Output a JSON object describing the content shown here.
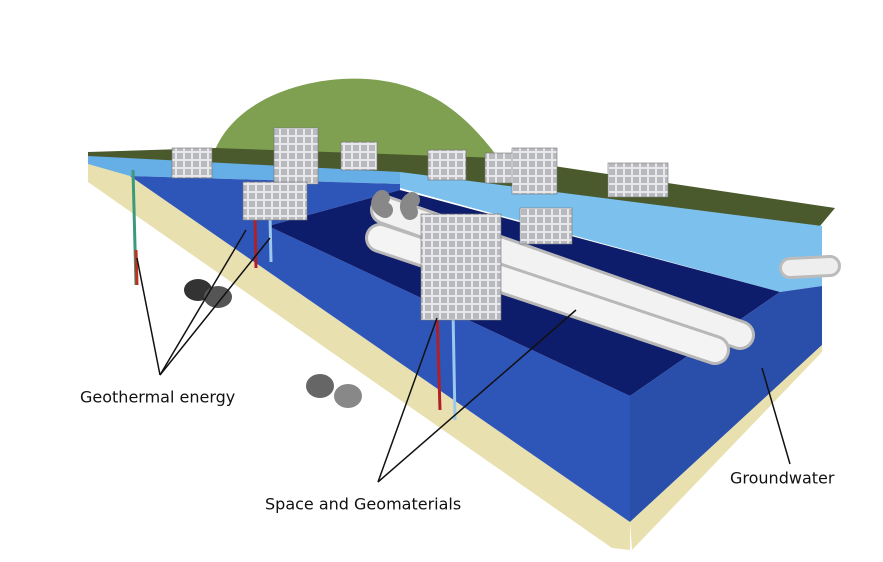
{
  "labels": {
    "geothermal": "Geothermal energy",
    "space": "Space and Geomaterials",
    "groundwater": "Groundwater"
  }
}
